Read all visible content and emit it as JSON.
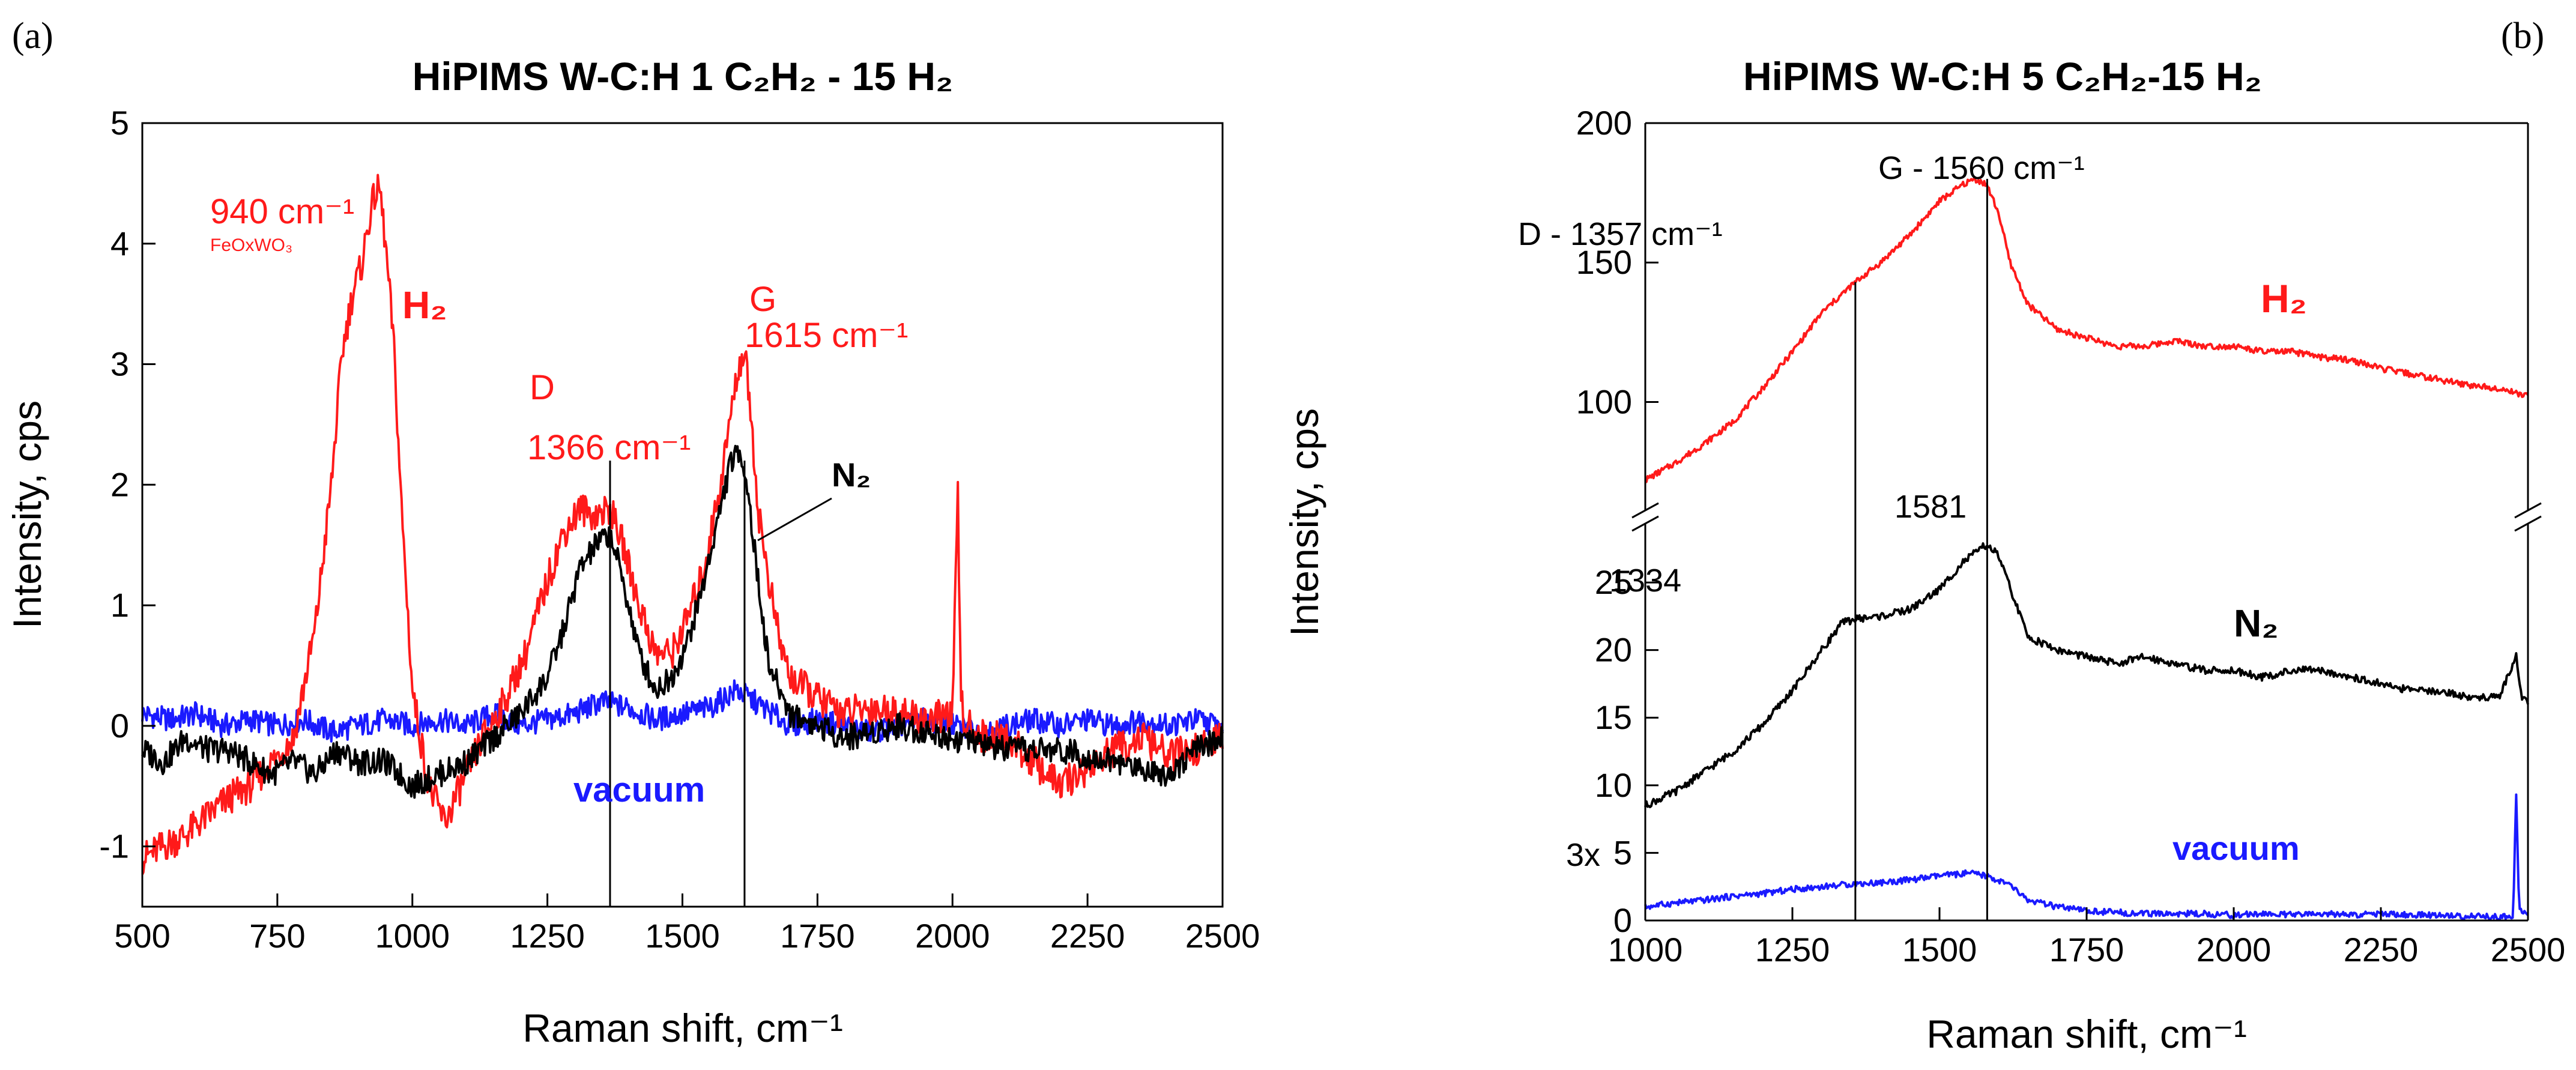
{
  "chart_data": [
    {
      "panel": "(a)",
      "type": "line",
      "title": "HiPIMS W-C:H 1 C₂H₂ - 15 H₂",
      "xlabel": "Raman shift, cm⁻¹",
      "ylabel": "Intensity, cps",
      "xlim": [
        500,
        2500
      ],
      "ylim": [
        -1.5,
        5
      ],
      "xticks": [
        500,
        750,
        1000,
        1250,
        1500,
        1750,
        2000,
        2250,
        2500
      ],
      "yticks": [
        -1,
        0,
        1,
        2,
        3,
        4,
        5
      ],
      "series": [
        {
          "name": "H2",
          "color": "#ff1a1a",
          "x": [
            500,
            540,
            580,
            620,
            660,
            700,
            740,
            780,
            820,
            850,
            870,
            890,
            905,
            920,
            930,
            940,
            950,
            965,
            980,
            1000,
            1030,
            1060,
            1080,
            1100,
            1130,
            1170,
            1210,
            1250,
            1280,
            1310,
            1340,
            1366,
            1390,
            1420,
            1450,
            1480,
            1510,
            1540,
            1570,
            1590,
            1605,
            1615,
            1625,
            1640,
            1660,
            1680,
            1700,
            1730,
            1760,
            1800,
            1850,
            1900,
            1950,
            2000,
            2010,
            2015,
            2020,
            2030,
            2060,
            2100,
            2150,
            2200,
            2250,
            2300,
            2350,
            2400,
            2450,
            2500
          ],
          "y": [
            -1.1,
            -1.0,
            -0.9,
            -0.75,
            -0.6,
            -0.5,
            -0.3,
            -0.1,
            0.8,
            2.0,
            3.1,
            3.6,
            3.8,
            4.2,
            4.4,
            4.45,
            4.0,
            3.2,
            1.8,
            0.3,
            -0.5,
            -0.8,
            -0.6,
            -0.4,
            -0.1,
            0.2,
            0.6,
            1.2,
            1.6,
            1.8,
            1.75,
            1.8,
            1.5,
            1.0,
            0.6,
            0.6,
            0.9,
            1.3,
            2.0,
            2.6,
            3.0,
            3.1,
            2.7,
            1.8,
            1.2,
            0.7,
            0.4,
            0.3,
            0.2,
            0.1,
            0.15,
            0.1,
            0.05,
            0.1,
            1.9,
            0.4,
            0.0,
            0.0,
            -0.1,
            -0.1,
            -0.3,
            -0.5,
            -0.35,
            -0.2,
            -0.1,
            -0.25,
            -0.2,
            -0.1
          ]
        },
        {
          "name": "N2",
          "color": "#000000",
          "x": [
            500,
            540,
            580,
            620,
            660,
            700,
            740,
            780,
            820,
            860,
            900,
            950,
            1000,
            1050,
            1100,
            1150,
            1200,
            1250,
            1280,
            1310,
            1340,
            1366,
            1390,
            1420,
            1450,
            1480,
            1510,
            1540,
            1570,
            1590,
            1610,
            1620,
            1640,
            1660,
            1700,
            1750,
            1800,
            1900,
            2000,
            2100,
            2200,
            2300,
            2400,
            2450,
            2500
          ],
          "y": [
            -0.2,
            -0.3,
            -0.1,
            -0.2,
            -0.2,
            -0.3,
            -0.4,
            -0.3,
            -0.4,
            -0.2,
            -0.3,
            -0.3,
            -0.5,
            -0.4,
            -0.3,
            -0.1,
            0.1,
            0.4,
            0.8,
            1.3,
            1.5,
            1.6,
            1.2,
            0.6,
            0.3,
            0.4,
            0.7,
            1.2,
            1.8,
            2.2,
            2.25,
            2.0,
            1.2,
            0.5,
            0.1,
            0.0,
            -0.1,
            0.0,
            -0.1,
            -0.2,
            -0.2,
            -0.3,
            -0.4,
            -0.2,
            -0.1
          ]
        },
        {
          "name": "vacuum",
          "color": "#1a1aff",
          "x": [
            500,
            550,
            600,
            650,
            700,
            750,
            800,
            850,
            900,
            950,
            1000,
            1050,
            1100,
            1150,
            1200,
            1250,
            1300,
            1350,
            1400,
            1450,
            1500,
            1550,
            1600,
            1650,
            1700,
            1750,
            1800,
            1850,
            1900,
            1950,
            2000,
            2050,
            2100,
            2150,
            2200,
            2250,
            2300,
            2350,
            2400,
            2450,
            2500
          ],
          "y": [
            0.1,
            0.05,
            0.1,
            0.0,
            0.05,
            0.0,
            0.05,
            -0.05,
            0.0,
            0.05,
            0.0,
            0.05,
            0.0,
            0.1,
            0.0,
            0.05,
            0.1,
            0.2,
            0.15,
            0.05,
            0.1,
            0.15,
            0.3,
            0.15,
            0.0,
            0.05,
            0.0,
            -0.05,
            0.0,
            0.05,
            0.0,
            -0.05,
            0.0,
            0.05,
            0.0,
            0.05,
            0.0,
            0.05,
            0.0,
            0.05,
            0.0
          ]
        }
      ],
      "vlines": [
        1366,
        1615
      ],
      "annotations": [
        {
          "lines": [
            "940 cm⁻¹"
          ],
          "sub": "FeOxWO₃",
          "color": "#ff1a1a"
        },
        {
          "text": "H₂",
          "color": "#ff1a1a"
        },
        {
          "lines": [
            "D",
            "1366 cm⁻¹"
          ],
          "color": "#ff1a1a"
        },
        {
          "lines": [
            "G",
            "1615 cm⁻¹"
          ],
          "color": "#ff1a1a"
        },
        {
          "text": "N₂",
          "color": "#000000"
        },
        {
          "text": "vacuum",
          "color": "#1a1aff"
        }
      ]
    },
    {
      "panel": "(b)",
      "type": "line",
      "title": "HiPIMS W-C:H 5 C₂H₂-15 H₂",
      "xlabel": "Raman shift, cm⁻¹",
      "ylabel": "Intensity, cps",
      "xlim": [
        1000,
        2500
      ],
      "xticks": [
        1000,
        1250,
        1500,
        1750,
        2000,
        2250,
        2500
      ],
      "broken_y_axis": true,
      "upper_ylim": [
        65,
        200
      ],
      "upper_yticks": [
        100,
        150,
        200
      ],
      "lower_ylim": [
        0,
        29
      ],
      "lower_yticks": [
        0,
        5,
        10,
        15,
        20,
        25
      ],
      "series": [
        {
          "name": "H2",
          "segment": "upper",
          "color": "#ff1a1a",
          "x": [
            1000,
            1050,
            1100,
            1150,
            1200,
            1250,
            1300,
            1357,
            1400,
            1450,
            1500,
            1540,
            1560,
            1580,
            1600,
            1620,
            1650,
            1700,
            1750,
            1800,
            1850,
            1900,
            1950,
            2000,
            2050,
            2100,
            2150,
            2200,
            2250,
            2300,
            2350,
            2400,
            2450,
            2500
          ],
          "y": [
            72,
            78,
            85,
            93,
            105,
            118,
            132,
            143,
            150,
            160,
            172,
            178,
            180,
            178,
            168,
            150,
            135,
            126,
            123,
            120,
            120,
            122,
            120,
            120,
            118,
            118,
            116,
            115,
            112,
            110,
            108,
            106,
            105,
            102
          ]
        },
        {
          "name": "N2",
          "segment": "lower",
          "color": "#000000",
          "x": [
            1000,
            1050,
            1100,
            1150,
            1200,
            1250,
            1300,
            1334,
            1357,
            1400,
            1450,
            1500,
            1540,
            1570,
            1581,
            1600,
            1625,
            1650,
            1700,
            1750,
            1800,
            1850,
            1900,
            1950,
            2000,
            2050,
            2100,
            2150,
            2200,
            2250,
            2300,
            2350,
            2400,
            2450,
            2480,
            2490,
            2500
          ],
          "y": [
            8.5,
            9.5,
            11.0,
            12.5,
            14.5,
            17.0,
            20.0,
            22.0,
            22.3,
            22.5,
            23.0,
            24.5,
            26.5,
            27.5,
            27.8,
            27.0,
            24.0,
            21.0,
            20.0,
            19.5,
            19.0,
            19.5,
            19.0,
            18.5,
            18.5,
            18.0,
            18.5,
            18.5,
            18.0,
            17.5,
            17.0,
            17.0,
            16.5,
            16.5,
            19.5,
            16.5,
            16.0
          ]
        },
        {
          "name": "vacuum",
          "segment": "lower",
          "color": "#1a1aff",
          "x": [
            1000,
            1050,
            1100,
            1150,
            1200,
            1250,
            1300,
            1350,
            1400,
            1450,
            1500,
            1550,
            1580,
            1620,
            1650,
            1700,
            1750,
            1800,
            1850,
            1900,
            1950,
            2000,
            2050,
            2100,
            2150,
            2200,
            2250,
            2300,
            2350,
            2400,
            2450,
            2475,
            2480,
            2485,
            2500
          ],
          "y": [
            1.0,
            1.3,
            1.5,
            1.8,
            2.0,
            2.3,
            2.5,
            2.7,
            2.8,
            3.0,
            3.3,
            3.5,
            3.3,
            2.6,
            1.5,
            1.0,
            0.7,
            0.6,
            0.5,
            0.5,
            0.5,
            0.4,
            0.5,
            0.4,
            0.5,
            0.4,
            0.5,
            0.4,
            0.4,
            0.3,
            0.3,
            0.3,
            9.5,
            0.8,
            0.5
          ]
        }
      ],
      "vlines": [
        1357,
        1581
      ],
      "annotations": [
        {
          "text": "G - 1560 cm⁻¹",
          "color": "#000000"
        },
        {
          "text": "D - 1357 cm⁻¹",
          "color": "#000000"
        },
        {
          "text": "H₂",
          "color": "#ff1a1a"
        },
        {
          "text": "1581",
          "color": "#000000"
        },
        {
          "text": "1334",
          "color": "#000000"
        },
        {
          "text": "N₂",
          "color": "#000000"
        },
        {
          "text": "3x",
          "color": "#000000"
        },
        {
          "text": "vacuum",
          "color": "#1a1aff"
        }
      ]
    }
  ]
}
